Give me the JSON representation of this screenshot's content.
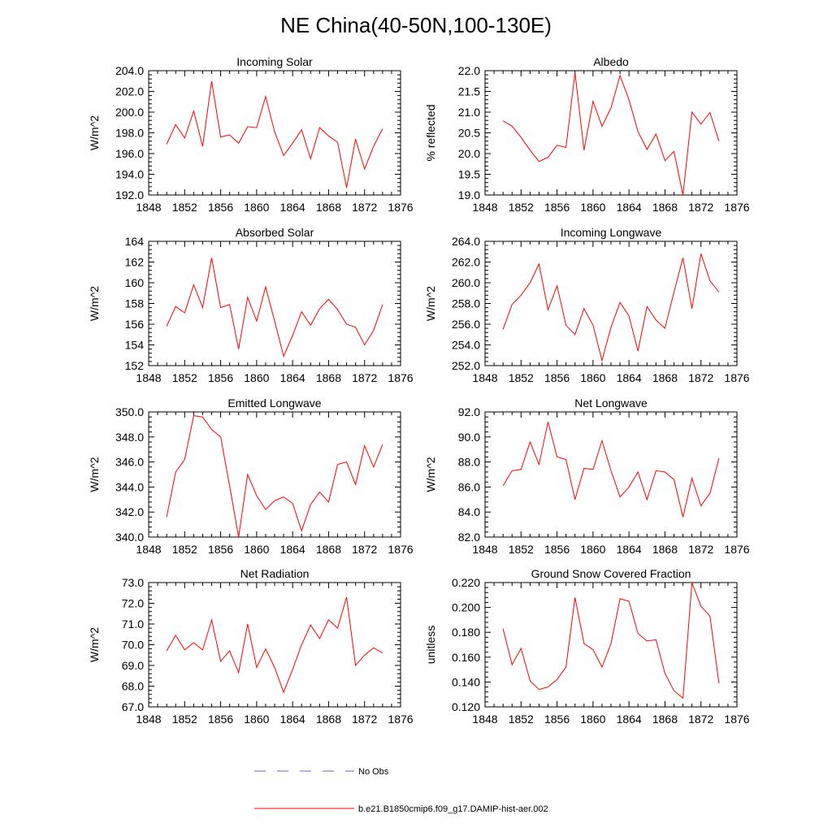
{
  "title": "NE China(40-50N,100-130E)",
  "legend": {
    "obs_label": "No Obs",
    "model_label": "b.e21.B1850cmip6.f09_g17.DAMIP-hist-aer.002",
    "obs_color": "#6666cc",
    "model_color": "#ff0000"
  },
  "chart_data": [
    {
      "type": "line",
      "title": "Incoming Solar",
      "ylabel": "W/m^2",
      "xlim": [
        1848,
        1876
      ],
      "ylim": [
        192,
        204
      ],
      "xticks": [
        "1848",
        "1852",
        "1856",
        "1860",
        "1864",
        "1868",
        "1872",
        "1876"
      ],
      "yticks": [
        "192.0",
        "194.0",
        "196.0",
        "198.0",
        "200.0",
        "202.0",
        "204.0"
      ],
      "ytick_values": [
        192,
        194,
        196,
        198,
        200,
        202,
        204
      ],
      "x": [
        1850,
        1851,
        1852,
        1853,
        1854,
        1855,
        1856,
        1857,
        1858,
        1859,
        1860,
        1861,
        1862,
        1863,
        1864,
        1865,
        1866,
        1867,
        1868,
        1869,
        1870,
        1871,
        1872,
        1873,
        1874
      ],
      "series": [
        {
          "values": [
            196.9,
            198.8,
            197.5,
            200.1,
            196.7,
            203.0,
            197.6,
            197.8,
            197.0,
            198.6,
            198.5,
            201.5,
            198.1,
            195.8,
            197.0,
            198.3,
            195.5,
            198.5,
            197.7,
            197.1,
            192.7,
            197.4,
            194.5,
            196.7,
            198.4
          ]
        }
      ]
    },
    {
      "type": "line",
      "title": "Albedo",
      "ylabel": "% reflected",
      "xlim": [
        1848,
        1876
      ],
      "ylim": [
        19,
        22
      ],
      "xticks": [
        "1848",
        "1852",
        "1856",
        "1860",
        "1864",
        "1868",
        "1872",
        "1876"
      ],
      "yticks": [
        "19.0",
        "19.5",
        "20.0",
        "20.5",
        "21.0",
        "21.5",
        "22.0"
      ],
      "ytick_values": [
        19,
        19.5,
        20,
        20.5,
        21,
        21.5,
        22
      ],
      "x": [
        1850,
        1851,
        1852,
        1853,
        1854,
        1855,
        1856,
        1857,
        1858,
        1859,
        1860,
        1861,
        1862,
        1863,
        1864,
        1865,
        1866,
        1867,
        1868,
        1869,
        1870,
        1871,
        1872,
        1873,
        1874
      ],
      "series": [
        {
          "values": [
            20.79,
            20.66,
            20.39,
            20.08,
            19.81,
            19.91,
            20.2,
            20.15,
            21.95,
            20.08,
            21.26,
            20.66,
            21.1,
            21.88,
            21.3,
            20.53,
            20.1,
            20.47,
            19.83,
            20.05,
            19.0,
            21.0,
            20.71,
            20.99,
            20.3
          ]
        }
      ]
    },
    {
      "type": "line",
      "title": "Absorbed Solar",
      "ylabel": "W/m^2",
      "xlim": [
        1848,
        1876
      ],
      "ylim": [
        152,
        164
      ],
      "xticks": [
        "1848",
        "1852",
        "1856",
        "1860",
        "1864",
        "1868",
        "1872",
        "1876"
      ],
      "yticks": [
        "152",
        "154",
        "156",
        "158",
        "160",
        "162",
        "164"
      ],
      "ytick_values": [
        152,
        154,
        156,
        158,
        160,
        162,
        164
      ],
      "x": [
        1850,
        1851,
        1852,
        1853,
        1854,
        1855,
        1856,
        1857,
        1858,
        1859,
        1860,
        1861,
        1862,
        1863,
        1864,
        1865,
        1866,
        1867,
        1868,
        1869,
        1870,
        1871,
        1872,
        1873,
        1874
      ],
      "series": [
        {
          "values": [
            155.8,
            157.7,
            157.1,
            159.8,
            157.6,
            162.4,
            157.6,
            157.9,
            153.6,
            158.6,
            156.3,
            159.6,
            156.3,
            152.9,
            154.9,
            157.2,
            155.9,
            157.5,
            158.4,
            157.4,
            156.0,
            155.7,
            154.0,
            155.4,
            157.9
          ]
        }
      ]
    },
    {
      "type": "line",
      "title": "Incoming Longwave",
      "ylabel": "W/m^2",
      "xlim": [
        1848,
        1876
      ],
      "ylim": [
        252,
        264
      ],
      "xticks": [
        "1848",
        "1852",
        "1856",
        "1860",
        "1864",
        "1868",
        "1872",
        "1876"
      ],
      "yticks": [
        "252.0",
        "254.0",
        "256.0",
        "258.0",
        "260.0",
        "262.0",
        "264.0"
      ],
      "ytick_values": [
        252,
        254,
        256,
        258,
        260,
        262,
        264
      ],
      "x": [
        1850,
        1851,
        1852,
        1853,
        1854,
        1855,
        1856,
        1857,
        1858,
        1859,
        1860,
        1861,
        1862,
        1863,
        1864,
        1865,
        1866,
        1867,
        1868,
        1869,
        1870,
        1871,
        1872,
        1873,
        1874
      ],
      "series": [
        {
          "values": [
            255.5,
            257.9,
            258.8,
            260.0,
            261.8,
            257.4,
            259.7,
            255.9,
            255.0,
            257.5,
            255.9,
            252.5,
            255.7,
            258.1,
            256.8,
            253.4,
            257.7,
            256.4,
            255.6,
            259.1,
            262.4,
            257.5,
            262.8,
            260.2,
            259.1
          ]
        }
      ]
    },
    {
      "type": "line",
      "title": "Emitted Longwave",
      "ylabel": "W/m^2",
      "xlim": [
        1848,
        1876
      ],
      "ylim": [
        340,
        350
      ],
      "xticks": [
        "1848",
        "1852",
        "1856",
        "1860",
        "1864",
        "1868",
        "1872",
        "1876"
      ],
      "yticks": [
        "340.0",
        "342.0",
        "344.0",
        "346.0",
        "348.0",
        "350.0"
      ],
      "ytick_values": [
        340,
        342,
        344,
        346,
        348,
        350
      ],
      "x": [
        1850,
        1851,
        1852,
        1853,
        1854,
        1855,
        1856,
        1857,
        1858,
        1859,
        1860,
        1861,
        1862,
        1863,
        1864,
        1865,
        1866,
        1867,
        1868,
        1869,
        1870,
        1871,
        1872,
        1873,
        1874
      ],
      "series": [
        {
          "values": [
            341.6,
            345.2,
            346.2,
            349.7,
            349.6,
            348.6,
            348.0,
            344.1,
            340.0,
            345.0,
            343.3,
            342.2,
            342.9,
            343.2,
            342.7,
            340.5,
            342.6,
            343.6,
            342.8,
            345.8,
            346.0,
            344.2,
            347.3,
            345.6,
            347.4
          ]
        }
      ]
    },
    {
      "type": "line",
      "title": "Net Longwave",
      "ylabel": "W/m^2",
      "xlim": [
        1848,
        1876
      ],
      "ylim": [
        82,
        92
      ],
      "xticks": [
        "1848",
        "1852",
        "1856",
        "1860",
        "1864",
        "1868",
        "1872",
        "1876"
      ],
      "yticks": [
        "82.0",
        "84.0",
        "86.0",
        "88.0",
        "90.0",
        "92.0"
      ],
      "ytick_values": [
        82,
        84,
        86,
        88,
        90,
        92
      ],
      "x": [
        1850,
        1851,
        1852,
        1853,
        1854,
        1855,
        1856,
        1857,
        1858,
        1859,
        1860,
        1861,
        1862,
        1863,
        1864,
        1865,
        1866,
        1867,
        1868,
        1869,
        1870,
        1871,
        1872,
        1873,
        1874
      ],
      "series": [
        {
          "values": [
            86.1,
            87.3,
            87.4,
            89.6,
            87.8,
            91.2,
            88.4,
            88.2,
            85.0,
            87.5,
            87.4,
            89.7,
            87.3,
            85.2,
            86.0,
            87.2,
            85.0,
            87.3,
            87.2,
            86.6,
            83.6,
            86.7,
            84.5,
            85.5,
            88.3
          ]
        }
      ]
    },
    {
      "type": "line",
      "title": "Net Radiation",
      "ylabel": "W/m^2",
      "xlim": [
        1848,
        1876
      ],
      "ylim": [
        67,
        73
      ],
      "xticks": [
        "1848",
        "1852",
        "1856",
        "1860",
        "1864",
        "1868",
        "1872",
        "1876"
      ],
      "yticks": [
        "67.0",
        "68.0",
        "69.0",
        "70.0",
        "71.0",
        "72.0",
        "73.0"
      ],
      "ytick_values": [
        67,
        68,
        69,
        70,
        71,
        72,
        73
      ],
      "x": [
        1850,
        1851,
        1852,
        1853,
        1854,
        1855,
        1856,
        1857,
        1858,
        1859,
        1860,
        1861,
        1862,
        1863,
        1864,
        1865,
        1866,
        1867,
        1868,
        1869,
        1870,
        1871,
        1872,
        1873,
        1874
      ],
      "series": [
        {
          "values": [
            69.7,
            70.45,
            69.75,
            70.1,
            69.75,
            71.2,
            69.2,
            69.7,
            68.65,
            71.0,
            68.9,
            69.8,
            68.9,
            67.7,
            68.8,
            70.0,
            70.95,
            70.3,
            71.2,
            70.8,
            72.3,
            69.0,
            69.5,
            69.85,
            69.6
          ]
        }
      ]
    },
    {
      "type": "line",
      "title": "Ground Snow Covered Fraction",
      "ylabel": "unitless",
      "xlim": [
        1848,
        1876
      ],
      "ylim": [
        0.12,
        0.22
      ],
      "xticks": [
        "1848",
        "1852",
        "1856",
        "1860",
        "1864",
        "1868",
        "1872",
        "1876"
      ],
      "yticks": [
        "0.120",
        "0.140",
        "0.160",
        "0.180",
        "0.200",
        "0.220"
      ],
      "ytick_values": [
        0.12,
        0.14,
        0.16,
        0.18,
        0.2,
        0.22
      ],
      "x": [
        1850,
        1851,
        1852,
        1853,
        1854,
        1855,
        1856,
        1857,
        1858,
        1859,
        1860,
        1861,
        1862,
        1863,
        1864,
        1865,
        1866,
        1867,
        1868,
        1869,
        1870,
        1871,
        1872,
        1873,
        1874
      ],
      "series": [
        {
          "values": [
            0.183,
            0.154,
            0.167,
            0.141,
            0.134,
            0.136,
            0.142,
            0.152,
            0.208,
            0.171,
            0.166,
            0.152,
            0.171,
            0.207,
            0.205,
            0.179,
            0.173,
            0.174,
            0.147,
            0.133,
            0.127,
            0.22,
            0.201,
            0.193,
            0.139
          ]
        }
      ]
    }
  ]
}
